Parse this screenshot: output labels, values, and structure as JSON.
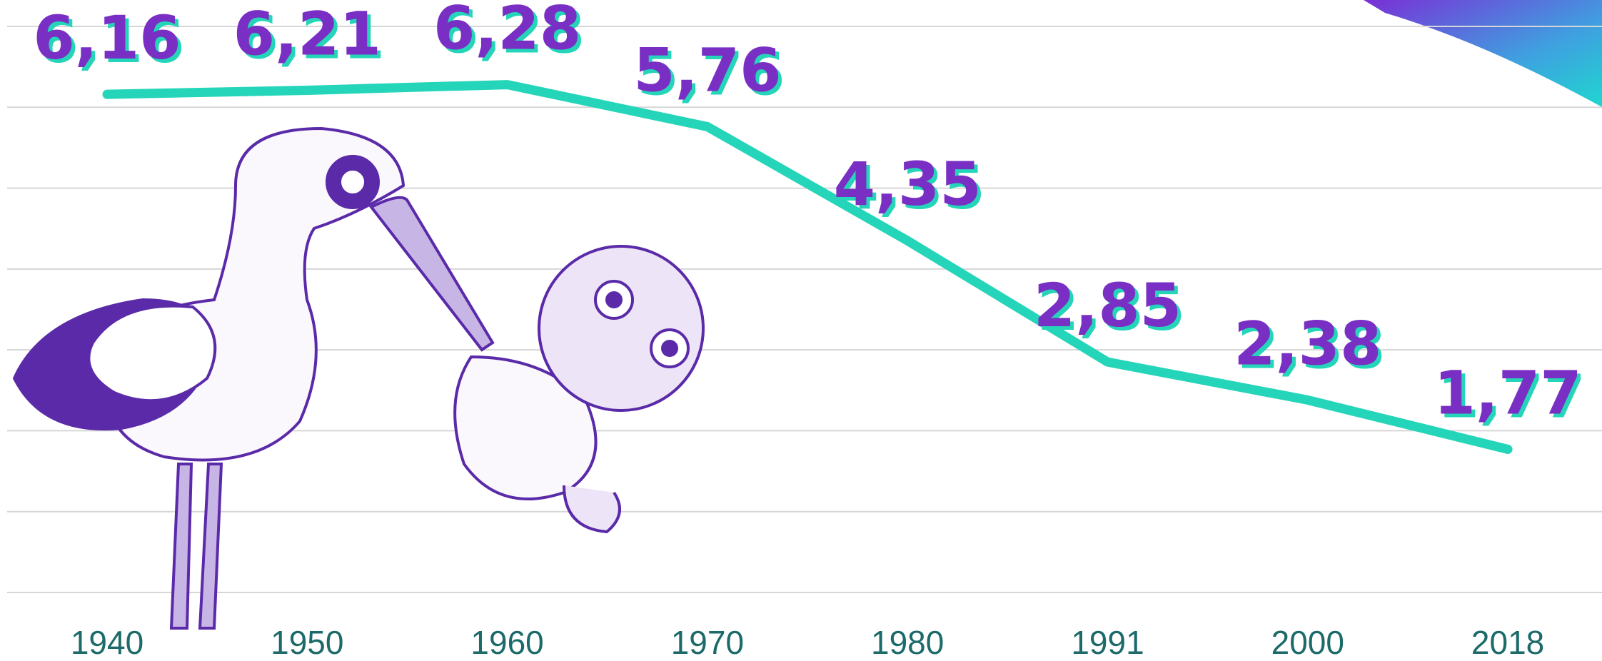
{
  "chart_data": {
    "type": "line",
    "categories": [
      "1940",
      "1950",
      "1960",
      "1970",
      "1980",
      "1991",
      "2000",
      "2018"
    ],
    "values": [
      6.16,
      6.21,
      6.28,
      5.76,
      4.35,
      2.85,
      2.38,
      1.77
    ],
    "value_labels": [
      "6,16",
      "6,21",
      "6,28",
      "5,76",
      "4,35",
      "2,85",
      "2,38",
      "1,77"
    ],
    "color": "#25d5b9",
    "ylim": [
      0,
      7
    ],
    "gridlines": [
      0,
      1,
      2,
      3,
      4,
      5,
      6,
      7
    ],
    "grid": true
  }
}
